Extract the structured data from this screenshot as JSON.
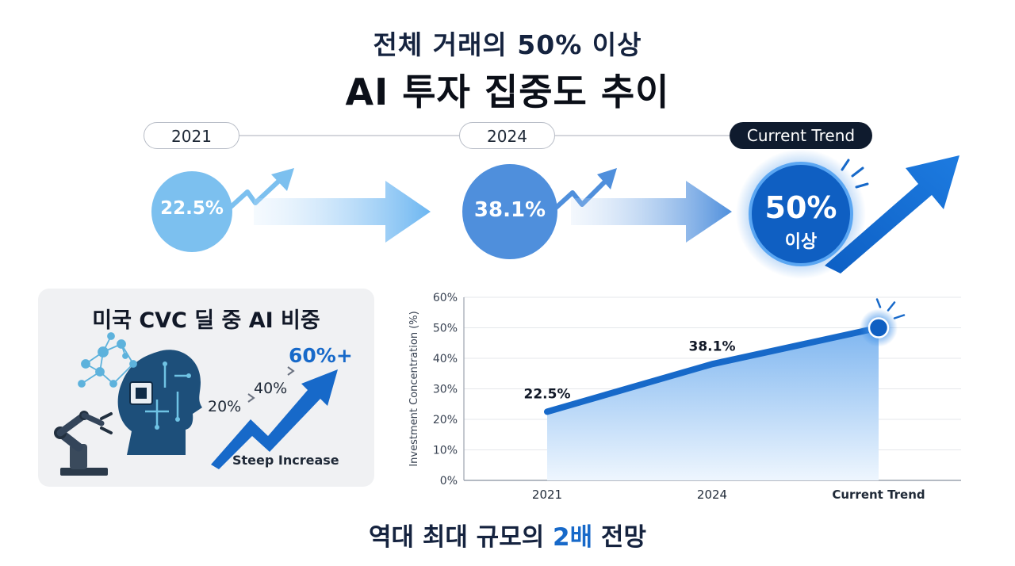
{
  "header": {
    "subtitle": "전체 거래의 50% 이상",
    "title": "AI 투자 집중도 추이"
  },
  "timeline": {
    "stages": [
      {
        "label": "2021",
        "value": "22.5%",
        "suffix": ""
      },
      {
        "label": "2024",
        "value": "38.1%",
        "suffix": ""
      },
      {
        "label": "Current Trend",
        "value": "50%",
        "suffix": "이상"
      }
    ]
  },
  "panel": {
    "title": "미국 CVC 딜 중 AI 비중",
    "values": [
      "20%",
      "40%",
      "60%+"
    ],
    "caption": "Steep Increase"
  },
  "chart_data": {
    "type": "area",
    "categories": [
      "2021",
      "2024",
      "Current Trend"
    ],
    "series": [
      {
        "values": [
          22.5,
          38.1,
          50
        ]
      }
    ],
    "data_labels": [
      "22.5%",
      "38.1%",
      ""
    ],
    "ylabel": "Investment Concentration (%)",
    "ylim": [
      0,
      60
    ],
    "yticks": [
      0,
      10,
      20,
      30,
      40,
      50,
      60
    ],
    "ytick_labels": [
      "0%",
      "10%",
      "20%",
      "30%",
      "40%",
      "50%",
      "60%"
    ],
    "grid": true,
    "colors": {
      "line": "#1769c9",
      "fill_top": "#7fb6f0",
      "fill_bottom": "#eef6fe"
    }
  },
  "footer": {
    "before": "역대 최대 규모의 ",
    "highlight": "2배",
    "after": " 전망"
  }
}
